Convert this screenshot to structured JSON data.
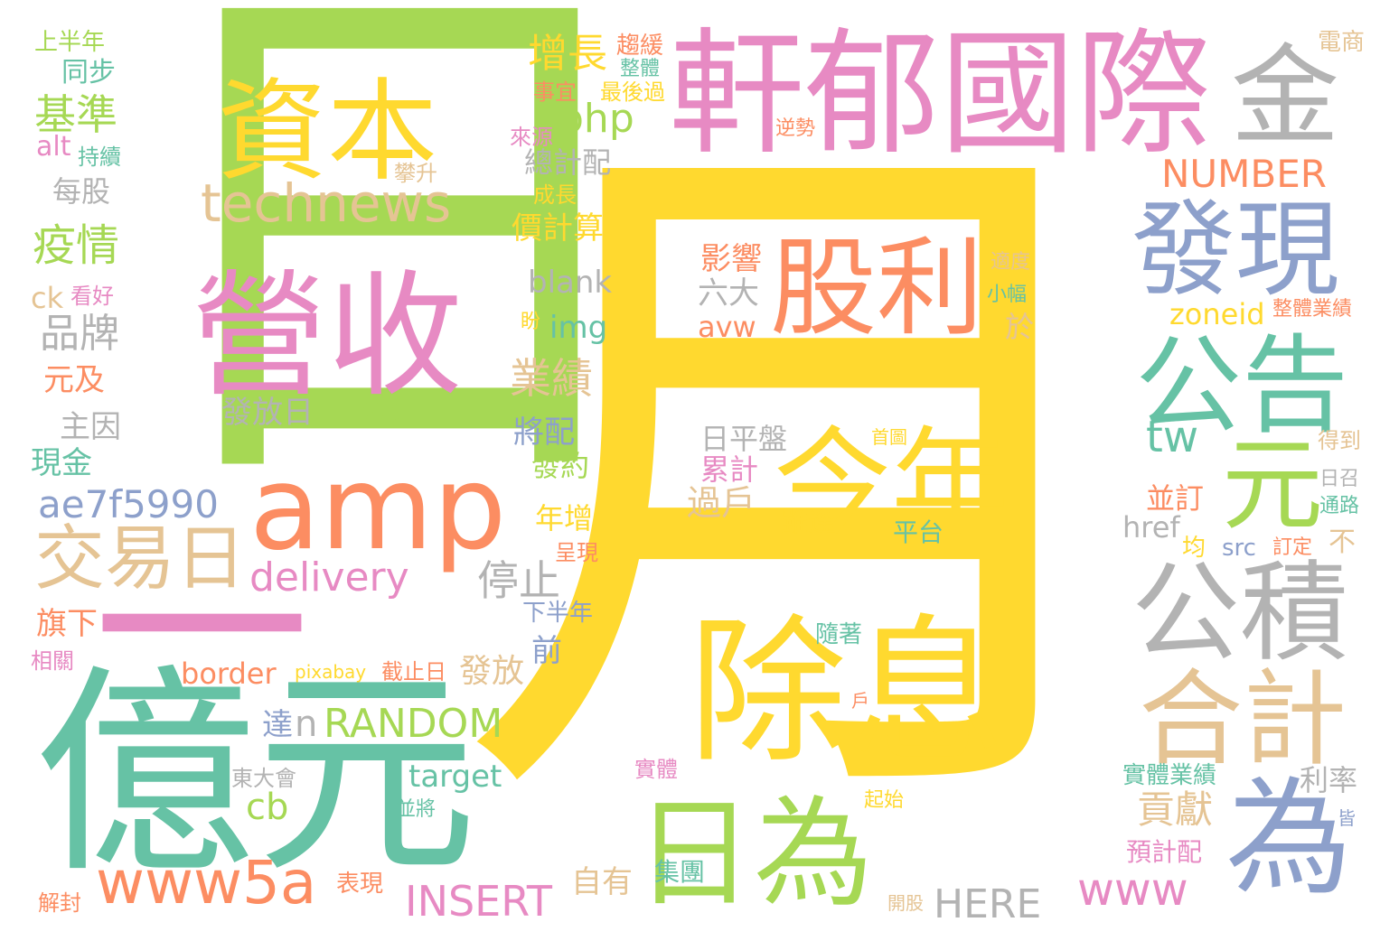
{
  "palette": {
    "green": "#a6d854",
    "yellow": "#ffd92f",
    "pink": "#e78ac3",
    "orange": "#fc8d62",
    "teal": "#66c2a5",
    "blue": "#8da0cb",
    "tan": "#e5c494",
    "gray": "#b3b3b3"
  },
  "words": [
    {
      "text": "日",
      "color": "green"
    },
    {
      "text": "月",
      "color": "yellow"
    },
    {
      "text": "軒郁國際",
      "color": "pink"
    },
    {
      "text": "億元",
      "color": "teal"
    },
    {
      "text": "除息",
      "color": "yellow"
    },
    {
      "text": "營收",
      "color": "pink"
    },
    {
      "text": "資本",
      "color": "yellow"
    },
    {
      "text": "amp",
      "color": "orange"
    },
    {
      "text": "股利",
      "color": "orange"
    },
    {
      "text": "今年",
      "color": "yellow"
    },
    {
      "text": "一",
      "color": "pink"
    },
    {
      "text": "公告",
      "color": "teal"
    },
    {
      "text": "發現",
      "color": "blue"
    },
    {
      "text": "公積",
      "color": "gray"
    },
    {
      "text": "日為",
      "color": "green"
    },
    {
      "text": "為",
      "color": "blue"
    },
    {
      "text": "合計",
      "color": "tan"
    },
    {
      "text": "元",
      "color": "green"
    },
    {
      "text": "金",
      "color": "gray"
    },
    {
      "text": "交易日",
      "color": "tan"
    },
    {
      "text": "www5a",
      "color": "orange"
    },
    {
      "text": "technews",
      "color": "tan"
    },
    {
      "text": "ae7f5990",
      "color": "blue"
    },
    {
      "text": "delivery",
      "color": "pink"
    },
    {
      "text": "NUMBER",
      "color": "orange"
    },
    {
      "text": "INSERT",
      "color": "pink"
    },
    {
      "text": "RANDOM",
      "color": "green"
    },
    {
      "text": "www",
      "color": "pink"
    },
    {
      "text": "HERE",
      "color": "gray"
    },
    {
      "text": "php",
      "color": "green"
    },
    {
      "text": "增長",
      "color": "yellow"
    },
    {
      "text": "基準",
      "color": "green"
    },
    {
      "text": "疫情",
      "color": "green"
    },
    {
      "text": "品牌",
      "color": "gray"
    },
    {
      "text": "業績",
      "color": "tan"
    },
    {
      "text": "停止",
      "color": "gray"
    },
    {
      "text": "tw",
      "color": "teal"
    },
    {
      "text": "貢獻",
      "color": "tan"
    },
    {
      "text": "現金殖",
      "color": "green"
    },
    {
      "text": "發放日",
      "color": "gray"
    },
    {
      "text": "border",
      "color": "orange"
    },
    {
      "text": "target",
      "color": "teal"
    },
    {
      "text": "cb",
      "color": "green"
    },
    {
      "text": "n",
      "color": "gray"
    },
    {
      "text": "達",
      "color": "blue"
    },
    {
      "text": "旗下",
      "color": "orange"
    },
    {
      "text": "發放",
      "color": "tan"
    },
    {
      "text": "zoneid",
      "color": "yellow"
    },
    {
      "text": "blank",
      "color": "gray"
    },
    {
      "text": "img",
      "color": "teal"
    },
    {
      "text": "avw",
      "color": "orange"
    },
    {
      "text": "影響",
      "color": "orange"
    },
    {
      "text": "六大",
      "color": "gray"
    },
    {
      "text": "於",
      "color": "tan"
    },
    {
      "text": "日平盤",
      "color": "gray"
    },
    {
      "text": "累計",
      "color": "pink"
    },
    {
      "text": "過戶",
      "color": "tan"
    },
    {
      "text": "雖逢",
      "color": "yellow"
    },
    {
      "text": "平台",
      "color": "teal"
    },
    {
      "text": "價計算",
      "color": "yellow"
    },
    {
      "text": "總計配",
      "color": "gray"
    },
    {
      "text": "將配",
      "color": "blue"
    },
    {
      "text": "發約",
      "color": "green"
    },
    {
      "text": "年增",
      "color": "yellow"
    },
    {
      "text": "呈現",
      "color": "orange"
    },
    {
      "text": "前",
      "color": "blue"
    },
    {
      "text": "下半年",
      "color": "blue"
    },
    {
      "text": "自有",
      "color": "tan"
    },
    {
      "text": "集團",
      "color": "teal"
    },
    {
      "text": "同步",
      "color": "teal"
    },
    {
      "text": "上半年",
      "color": "green"
    },
    {
      "text": "每股",
      "color": "gray"
    },
    {
      "text": "alt",
      "color": "pink"
    },
    {
      "text": "持續",
      "color": "teal"
    },
    {
      "text": "ck",
      "color": "tan"
    },
    {
      "text": "看好",
      "color": "pink"
    },
    {
      "text": "元及",
      "color": "orange"
    },
    {
      "text": "主因",
      "color": "gray"
    },
    {
      "text": "現金",
      "color": "teal"
    },
    {
      "text": "相關",
      "color": "pink"
    },
    {
      "text": "解封",
      "color": "orange"
    },
    {
      "text": "表現",
      "color": "orange"
    },
    {
      "text": "pixabay",
      "color": "yellow"
    },
    {
      "text": "截止日",
      "color": "orange"
    },
    {
      "text": "東大會",
      "color": "gray"
    },
    {
      "text": "並將",
      "color": "teal"
    },
    {
      "text": "趨緩",
      "color": "orange"
    },
    {
      "text": "整體",
      "color": "teal"
    },
    {
      "text": "事宜",
      "color": "orange"
    },
    {
      "text": "最後過",
      "color": "yellow"
    },
    {
      "text": "來源",
      "color": "pink"
    },
    {
      "text": "攀升",
      "color": "tan"
    },
    {
      "text": "成長",
      "color": "yellow"
    },
    {
      "text": "盼",
      "color": "yellow"
    },
    {
      "text": "逆勢",
      "color": "orange"
    },
    {
      "text": "電商",
      "color": "tan"
    },
    {
      "text": "適度",
      "color": "tan"
    },
    {
      "text": "小幅",
      "color": "teal"
    },
    {
      "text": "整體業績",
      "color": "orange"
    },
    {
      "text": "首圖",
      "color": "yellow"
    },
    {
      "text": "並訂",
      "color": "orange"
    },
    {
      "text": "日召",
      "color": "gray"
    },
    {
      "text": "通路",
      "color": "teal"
    },
    {
      "text": "得到",
      "color": "tan"
    },
    {
      "text": "href",
      "color": "gray"
    },
    {
      "text": "均",
      "color": "yellow"
    },
    {
      "text": "src",
      "color": "blue"
    },
    {
      "text": "訂定",
      "color": "orange"
    },
    {
      "text": "不",
      "color": "tan"
    },
    {
      "text": "隨著",
      "color": "teal"
    },
    {
      "text": "戶",
      "color": "orange"
    },
    {
      "text": "實體",
      "color": "pink"
    },
    {
      "text": "起始",
      "color": "yellow"
    },
    {
      "text": "實體業績",
      "color": "teal"
    },
    {
      "text": "利率",
      "color": "gray"
    },
    {
      "text": "皆",
      "color": "blue"
    },
    {
      "text": "預計配",
      "color": "pink"
    },
    {
      "text": "開股",
      "color": "tan"
    }
  ]
}
